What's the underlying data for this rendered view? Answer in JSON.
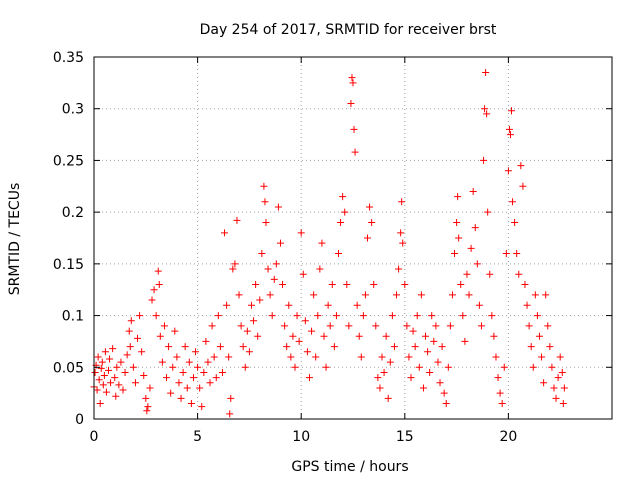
{
  "chart_data": {
    "type": "scatter",
    "title": "Day 254 of 2017, SRMTID for receiver brst",
    "xlabel": "GPS time / hours",
    "ylabel": "SRMTID / TECUs",
    "xlim": [
      0,
      25
    ],
    "ylim": [
      0,
      0.35
    ],
    "xticks": [
      0,
      5,
      10,
      15,
      20
    ],
    "xtick_labels": [
      "0",
      "5",
      "10",
      "15",
      "20"
    ],
    "yticks": [
      0,
      0.05,
      0.1,
      0.15,
      0.2,
      0.25,
      0.3,
      0.35
    ],
    "ytick_labels": [
      "0",
      "0.05",
      "0.1",
      "0.15",
      "0.2",
      "0.25",
      "0.3",
      "0.35"
    ],
    "grid": true,
    "marker": "+",
    "color": "#ff0000",
    "series": [
      {
        "points": [
          [
            0.0,
            0.031
          ],
          [
            0.05,
            0.045
          ],
          [
            0.1,
            0.052
          ],
          [
            0.15,
            0.028
          ],
          [
            0.2,
            0.06
          ],
          [
            0.25,
            0.038
          ],
          [
            0.3,
            0.015
          ],
          [
            0.35,
            0.049
          ],
          [
            0.4,
            0.055
          ],
          [
            0.45,
            0.033
          ],
          [
            0.5,
            0.042
          ],
          [
            0.55,
            0.065
          ],
          [
            0.6,
            0.026
          ],
          [
            0.7,
            0.047
          ],
          [
            0.75,
            0.058
          ],
          [
            0.8,
            0.035
          ],
          [
            0.9,
            0.068
          ],
          [
            1.0,
            0.04
          ],
          [
            1.05,
            0.022
          ],
          [
            1.1,
            0.05
          ],
          [
            1.2,
            0.033
          ],
          [
            1.3,
            0.055
          ],
          [
            1.4,
            0.028
          ],
          [
            1.5,
            0.045
          ],
          [
            1.6,
            0.062
          ],
          [
            1.7,
            0.085
          ],
          [
            1.75,
            0.07
          ],
          [
            1.8,
            0.095
          ],
          [
            1.9,
            0.05
          ],
          [
            2.0,
            0.035
          ],
          [
            2.1,
            0.078
          ],
          [
            2.2,
            0.1
          ],
          [
            2.3,
            0.065
          ],
          [
            2.4,
            0.042
          ],
          [
            2.5,
            0.02
          ],
          [
            2.55,
            0.008
          ],
          [
            2.6,
            0.012
          ],
          [
            2.7,
            0.03
          ],
          [
            2.8,
            0.115
          ],
          [
            2.9,
            0.125
          ],
          [
            3.0,
            0.1
          ],
          [
            3.1,
            0.143
          ],
          [
            3.15,
            0.13
          ],
          [
            3.2,
            0.08
          ],
          [
            3.3,
            0.055
          ],
          [
            3.4,
            0.09
          ],
          [
            3.5,
            0.04
          ],
          [
            3.6,
            0.07
          ],
          [
            3.7,
            0.025
          ],
          [
            3.8,
            0.05
          ],
          [
            3.9,
            0.085
          ],
          [
            4.0,
            0.06
          ],
          [
            4.1,
            0.035
          ],
          [
            4.2,
            0.02
          ],
          [
            4.3,
            0.045
          ],
          [
            4.4,
            0.07
          ],
          [
            4.5,
            0.03
          ],
          [
            4.6,
            0.055
          ],
          [
            4.7,
            0.015
          ],
          [
            4.8,
            0.04
          ],
          [
            4.9,
            0.065
          ],
          [
            5.0,
            0.05
          ],
          [
            5.1,
            0.03
          ],
          [
            5.2,
            0.012
          ],
          [
            5.3,
            0.045
          ],
          [
            5.4,
            0.075
          ],
          [
            5.5,
            0.055
          ],
          [
            5.6,
            0.035
          ],
          [
            5.7,
            0.09
          ],
          [
            5.8,
            0.06
          ],
          [
            5.9,
            0.04
          ],
          [
            6.0,
            0.1
          ],
          [
            6.1,
            0.07
          ],
          [
            6.2,
            0.045
          ],
          [
            6.3,
            0.18
          ],
          [
            6.4,
            0.11
          ],
          [
            6.5,
            0.06
          ],
          [
            6.55,
            0.005
          ],
          [
            6.6,
            0.02
          ],
          [
            6.7,
            0.145
          ],
          [
            6.8,
            0.15
          ],
          [
            6.9,
            0.192
          ],
          [
            7.0,
            0.12
          ],
          [
            7.1,
            0.09
          ],
          [
            7.2,
            0.07
          ],
          [
            7.3,
            0.05
          ],
          [
            7.4,
            0.085
          ],
          [
            7.5,
            0.065
          ],
          [
            7.6,
            0.11
          ],
          [
            7.7,
            0.095
          ],
          [
            7.8,
            0.13
          ],
          [
            7.9,
            0.08
          ],
          [
            8.0,
            0.115
          ],
          [
            8.1,
            0.16
          ],
          [
            8.2,
            0.225
          ],
          [
            8.25,
            0.21
          ],
          [
            8.3,
            0.19
          ],
          [
            8.4,
            0.145
          ],
          [
            8.5,
            0.12
          ],
          [
            8.6,
            0.1
          ],
          [
            8.7,
            0.135
          ],
          [
            8.8,
            0.15
          ],
          [
            8.9,
            0.205
          ],
          [
            9.0,
            0.17
          ],
          [
            9.1,
            0.13
          ],
          [
            9.2,
            0.09
          ],
          [
            9.3,
            0.07
          ],
          [
            9.4,
            0.11
          ],
          [
            9.5,
            0.06
          ],
          [
            9.6,
            0.08
          ],
          [
            9.7,
            0.05
          ],
          [
            9.8,
            0.1
          ],
          [
            9.9,
            0.075
          ],
          [
            10.0,
            0.18
          ],
          [
            10.1,
            0.14
          ],
          [
            10.2,
            0.095
          ],
          [
            10.3,
            0.065
          ],
          [
            10.4,
            0.04
          ],
          [
            10.5,
            0.085
          ],
          [
            10.6,
            0.12
          ],
          [
            10.7,
            0.06
          ],
          [
            10.8,
            0.1
          ],
          [
            10.9,
            0.145
          ],
          [
            11.0,
            0.17
          ],
          [
            11.1,
            0.08
          ],
          [
            11.2,
            0.05
          ],
          [
            11.3,
            0.11
          ],
          [
            11.4,
            0.09
          ],
          [
            11.5,
            0.13
          ],
          [
            11.6,
            0.07
          ],
          [
            11.7,
            0.1
          ],
          [
            11.8,
            0.16
          ],
          [
            11.9,
            0.19
          ],
          [
            12.0,
            0.215
          ],
          [
            12.1,
            0.2
          ],
          [
            12.2,
            0.13
          ],
          [
            12.3,
            0.09
          ],
          [
            12.4,
            0.305
          ],
          [
            12.45,
            0.33
          ],
          [
            12.5,
            0.325
          ],
          [
            12.55,
            0.28
          ],
          [
            12.6,
            0.258
          ],
          [
            12.7,
            0.11
          ],
          [
            12.8,
            0.08
          ],
          [
            12.9,
            0.06
          ],
          [
            13.0,
            0.1
          ],
          [
            13.1,
            0.12
          ],
          [
            13.2,
            0.175
          ],
          [
            13.3,
            0.205
          ],
          [
            13.4,
            0.19
          ],
          [
            13.5,
            0.13
          ],
          [
            13.6,
            0.09
          ],
          [
            13.7,
            0.04
          ],
          [
            13.8,
            0.03
          ],
          [
            13.9,
            0.06
          ],
          [
            14.0,
            0.045
          ],
          [
            14.1,
            0.08
          ],
          [
            14.2,
            0.02
          ],
          [
            14.3,
            0.055
          ],
          [
            14.4,
            0.1
          ],
          [
            14.5,
            0.07
          ],
          [
            14.6,
            0.12
          ],
          [
            14.7,
            0.145
          ],
          [
            14.8,
            0.18
          ],
          [
            14.85,
            0.21
          ],
          [
            14.9,
            0.17
          ],
          [
            15.0,
            0.13
          ],
          [
            15.1,
            0.09
          ],
          [
            15.2,
            0.06
          ],
          [
            15.3,
            0.04
          ],
          [
            15.4,
            0.085
          ],
          [
            15.5,
            0.07
          ],
          [
            15.6,
            0.1
          ],
          [
            15.7,
            0.05
          ],
          [
            15.8,
            0.12
          ],
          [
            15.9,
            0.03
          ],
          [
            16.0,
            0.08
          ],
          [
            16.1,
            0.065
          ],
          [
            16.2,
            0.045
          ],
          [
            16.3,
            0.1
          ],
          [
            16.4,
            0.075
          ],
          [
            16.5,
            0.09
          ],
          [
            16.6,
            0.055
          ],
          [
            16.7,
            0.035
          ],
          [
            16.8,
            0.07
          ],
          [
            16.9,
            0.025
          ],
          [
            17.0,
            0.015
          ],
          [
            17.1,
            0.05
          ],
          [
            17.2,
            0.09
          ],
          [
            17.3,
            0.12
          ],
          [
            17.4,
            0.16
          ],
          [
            17.5,
            0.19
          ],
          [
            17.55,
            0.215
          ],
          [
            17.6,
            0.175
          ],
          [
            17.7,
            0.13
          ],
          [
            17.8,
            0.1
          ],
          [
            17.9,
            0.075
          ],
          [
            18.0,
            0.14
          ],
          [
            18.1,
            0.12
          ],
          [
            18.2,
            0.165
          ],
          [
            18.3,
            0.22
          ],
          [
            18.4,
            0.185
          ],
          [
            18.5,
            0.15
          ],
          [
            18.6,
            0.11
          ],
          [
            18.7,
            0.09
          ],
          [
            18.8,
            0.25
          ],
          [
            18.85,
            0.3
          ],
          [
            18.9,
            0.335
          ],
          [
            18.95,
            0.295
          ],
          [
            19.0,
            0.2
          ],
          [
            19.1,
            0.14
          ],
          [
            19.2,
            0.1
          ],
          [
            19.3,
            0.08
          ],
          [
            19.4,
            0.06
          ],
          [
            19.5,
            0.04
          ],
          [
            19.6,
            0.025
          ],
          [
            19.7,
            0.015
          ],
          [
            19.8,
            0.05
          ],
          [
            19.9,
            0.16
          ],
          [
            20.0,
            0.24
          ],
          [
            20.05,
            0.28
          ],
          [
            20.1,
            0.275
          ],
          [
            20.15,
            0.298
          ],
          [
            20.2,
            0.21
          ],
          [
            20.3,
            0.19
          ],
          [
            20.4,
            0.16
          ],
          [
            20.5,
            0.14
          ],
          [
            20.6,
            0.245
          ],
          [
            20.7,
            0.225
          ],
          [
            20.8,
            0.13
          ],
          [
            20.9,
            0.11
          ],
          [
            21.0,
            0.09
          ],
          [
            21.1,
            0.07
          ],
          [
            21.2,
            0.05
          ],
          [
            21.3,
            0.12
          ],
          [
            21.4,
            0.1
          ],
          [
            21.5,
            0.08
          ],
          [
            21.6,
            0.06
          ],
          [
            21.7,
            0.035
          ],
          [
            21.8,
            0.12
          ],
          [
            21.9,
            0.09
          ],
          [
            22.0,
            0.07
          ],
          [
            22.1,
            0.05
          ],
          [
            22.2,
            0.03
          ],
          [
            22.3,
            0.02
          ],
          [
            22.4,
            0.04
          ],
          [
            22.5,
            0.06
          ],
          [
            22.6,
            0.045
          ],
          [
            22.65,
            0.015
          ],
          [
            22.7,
            0.03
          ]
        ]
      }
    ]
  }
}
